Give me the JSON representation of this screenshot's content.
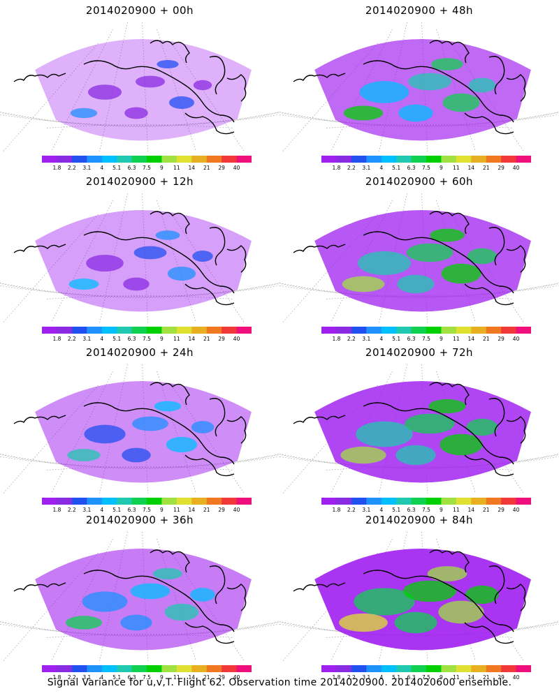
{
  "panels": [
    {
      "title": "2014020900  +  00h",
      "level": 0
    },
    {
      "title": "2014020900  +  48h",
      "level": 4
    },
    {
      "title": "2014020900  +  12h",
      "level": 1
    },
    {
      "title": "2014020900  +  60h",
      "level": 5
    },
    {
      "title": "2014020900  +  24h",
      "level": 2
    },
    {
      "title": "2014020900  +  72h",
      "level": 6
    },
    {
      "title": "2014020900  +  36h",
      "level": 3
    },
    {
      "title": "2014020900  +  84h",
      "level": 7
    }
  ],
  "colorbar": {
    "labels": [
      "1.8",
      "2.2",
      "3.1",
      "4",
      "5.1",
      "6.3",
      "7.5",
      "9",
      "11",
      "14",
      "21",
      "29",
      "40"
    ],
    "colors": [
      "#a020f0",
      "#8a2be2",
      "#2050f0",
      "#1e90ff",
      "#00bfff",
      "#20c8b0",
      "#10d050",
      "#00d000",
      "#a0e040",
      "#e0e030",
      "#e8b020",
      "#f07820",
      "#f03838",
      "#f0107c"
    ]
  },
  "footer": "Signal Variance for u,v,T. Flight 62. Observation time 2014020900. 2014020600 ensemble."
}
